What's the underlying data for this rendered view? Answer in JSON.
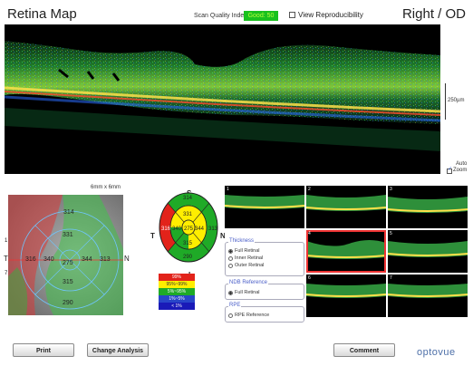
{
  "header": {
    "title": "Retina Map",
    "scan_quality_label": "Scan Quality Index",
    "scan_quality_value": "Good: 50",
    "view_reproducibility": "View Reproducibility",
    "eye": "Right / OD"
  },
  "bscan": {
    "scale_label": "250µm",
    "auto_label": "Auto",
    "zoom_label": "Zoom"
  },
  "map": {
    "size_label": "6mm x 6mm",
    "values": [
      "314",
      "331",
      "316",
      "340",
      "275",
      "344",
      "313",
      "315",
      "290"
    ],
    "orient_t": "T",
    "orient_n": "N",
    "scan_marker_1": "1",
    "scan_marker_7": "7"
  },
  "etdrs": {
    "top": "S",
    "bottom": "I",
    "left": "T",
    "right": "N",
    "outer_superior": "314",
    "inner_superior": "331",
    "outer_temporal": "316",
    "inner_temporal": "340",
    "center": "275",
    "inner_nasal": "344",
    "outer_nasal": "313",
    "inner_inferior": "315",
    "outer_inferior": "290"
  },
  "legend": [
    {
      "label": "99%",
      "color": "#e2231a",
      "text_color": "#ffffff"
    },
    {
      "label": "95%~99%",
      "color": "#ffee00",
      "text_color": "#333333"
    },
    {
      "label": "5%~95%",
      "color": "#1faa27",
      "text_color": "#ffffff"
    },
    {
      "label": "1%~5%",
      "color": "#2846c8",
      "text_color": "#ffffff"
    },
    {
      "label": "< 1%",
      "color": "#1a1ab8",
      "text_color": "#ffffff"
    }
  ],
  "thumbnails": [
    "1",
    "2",
    "3",
    "4",
    "5",
    "6",
    "7"
  ],
  "thickness": {
    "title": "Thickness",
    "options": [
      "Full Retinal",
      "Inner Retinal",
      "Outer Retinal"
    ],
    "selected": "Full Retinal"
  },
  "ndb": {
    "title": "NDB Reference",
    "options": [
      "Full Retinal"
    ],
    "selected": "Full Retinal"
  },
  "rpe": {
    "title": "RPE",
    "options": [
      "RPE Reference"
    ]
  },
  "buttons": {
    "print": "Print",
    "change_analysis": "Change Analysis",
    "comment": "Comment"
  },
  "logo": "optovue",
  "colors": {
    "scan_quality_good": "#19c11e",
    "selected_thumbnail": "#e33333",
    "group_title": "#4a5ec8"
  }
}
